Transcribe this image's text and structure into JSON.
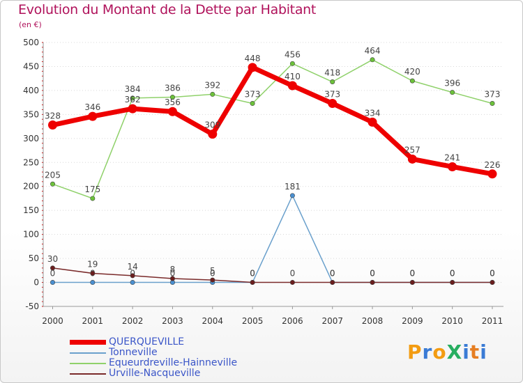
{
  "title": "Evolution du Montant de la Dette par Habitant",
  "subtitle": "(en €)",
  "logo": {
    "text": "ProXiti",
    "letters": [
      "P",
      "r",
      "o",
      "X",
      "i",
      "t",
      "i"
    ],
    "colors": [
      "#f39c12",
      "#3a7bd5",
      "#f39c12",
      "#27ae60",
      "#3a7bd5",
      "#e67e22",
      "#3a7bd5"
    ]
  },
  "chart_data": {
    "type": "line",
    "title": "Evolution du Montant de la Dette par Habitant",
    "ylabel": "(en €)",
    "xlabel": "",
    "x": [
      "2000",
      "2001",
      "2002",
      "2003",
      "2004",
      "2005",
      "2006",
      "2007",
      "2008",
      "2009",
      "2010",
      "2011"
    ],
    "ylim": [
      -50,
      500
    ],
    "yticks": [
      -50,
      0,
      50,
      100,
      150,
      200,
      250,
      300,
      350,
      400,
      450,
      500
    ],
    "grid": true,
    "legend_position": "bottom-left",
    "series": [
      {
        "name": "Tonneville",
        "color": "#6aa0cc",
        "marker": "#4a8fd0",
        "values": [
          0,
          0,
          0,
          0,
          0,
          0,
          181,
          0,
          0,
          0,
          0,
          0
        ]
      },
      {
        "name": "Equeurdreville-Hainneville",
        "color": "#8fd16a",
        "marker": "#6cc23a",
        "values": [
          205,
          175,
          384,
          386,
          392,
          373,
          456,
          418,
          464,
          420,
          396,
          373
        ]
      },
      {
        "name": "Urville-Nacqueville",
        "color": "#7a2a2a",
        "marker": "#6b1e1e",
        "values": [
          30,
          19,
          14,
          8,
          5,
          0,
          0,
          0,
          0,
          0,
          0,
          0
        ]
      },
      {
        "name": "QUERQUEVILLE",
        "color": "#ee0000",
        "marker": "#ee0000",
        "values": [
          328,
          346,
          362,
          356,
          309,
          448,
          410,
          373,
          334,
          257,
          241,
          226
        ]
      }
    ]
  }
}
